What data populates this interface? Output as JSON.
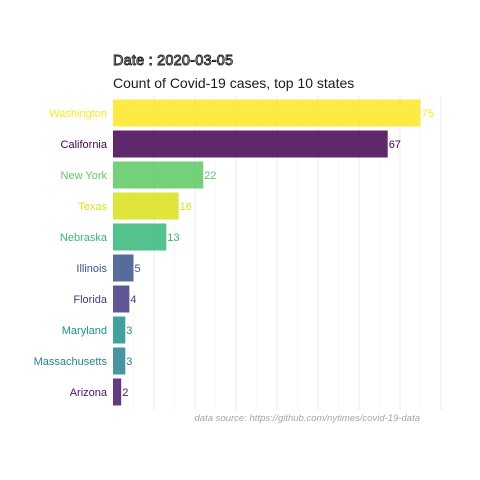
{
  "chart_data": {
    "type": "bar",
    "orientation": "horizontal",
    "title": "Date : 2020-03-05",
    "subtitle": "Count of Covid-19 cases, top 10 states",
    "caption": "data source: https://github.com/nytimes/covid-19-data",
    "xlabel": "",
    "ylabel": "",
    "xlim": [
      0,
      80
    ],
    "grid": true,
    "legend": "none",
    "categories": [
      "Washington",
      "California",
      "New York",
      "Texas",
      "Nebraska",
      "Illinois",
      "Florida",
      "Maryland",
      "Massachusetts",
      "Arizona"
    ],
    "values": [
      75,
      67,
      22,
      16,
      13,
      5,
      4,
      3,
      3,
      2
    ],
    "colors": [
      "#FDE725",
      "#440154",
      "#5DC863",
      "#D8E219",
      "#35B779",
      "#3B528B",
      "#443A83",
      "#21908C",
      "#26828E",
      "#481668"
    ]
  }
}
